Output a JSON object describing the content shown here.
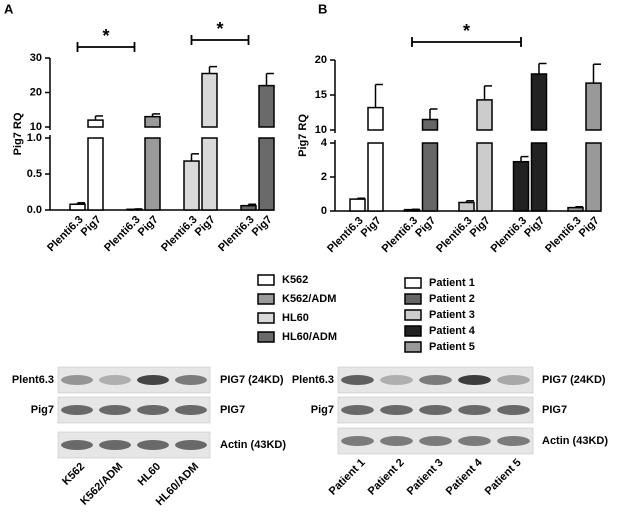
{
  "chart_data": [
    {
      "type": "bar",
      "panel": "A",
      "y_label": "Pig7 RQ",
      "categories": [
        "Plenti6.3",
        "Pig7"
      ],
      "series": [
        {
          "name": "K562",
          "color": "#ffffff",
          "values": [
            0.08,
            12
          ],
          "errors": [
            0.02,
            1.2
          ]
        },
        {
          "name": "K562/ADM",
          "color": "#9a9a9a",
          "values": [
            0.01,
            13
          ],
          "errors": [
            0.005,
            0.8
          ]
        },
        {
          "name": "HL60",
          "color": "#d9d9d9",
          "values": [
            0.68,
            25.5
          ],
          "errors": [
            0.1,
            2
          ]
        },
        {
          "name": "HL60/ADM",
          "color": "#6a6a6a",
          "values": [
            0.06,
            22
          ],
          "errors": [
            0.02,
            3.5
          ]
        }
      ],
      "ylim_lower": [
        0,
        1
      ],
      "yticks_lower": [
        {
          "value": 0,
          "label": "0.0"
        },
        {
          "value": 0.5,
          "label": "0.5"
        },
        {
          "value": 1,
          "label": "1.0"
        }
      ],
      "ylim_upper": [
        10,
        30
      ],
      "yticks_upper": [
        10,
        20,
        30
      ],
      "annotations": [
        "*",
        "*"
      ],
      "blot": {
        "row_labels": [
          "Plent6.3",
          "Pig7"
        ],
        "band_labels": [
          "PIG7 (24KD)",
          "PIG7",
          "Actin (43KD)"
        ],
        "lanes": [
          "K562",
          "K562/ADM",
          "HL60",
          "HL60/ADM"
        ]
      }
    },
    {
      "type": "bar",
      "panel": "B",
      "y_label": "Pig7 RQ",
      "categories": [
        "Plenti6.3",
        "Pig7"
      ],
      "series": [
        {
          "name": "Patient 1",
          "color": "#ffffff",
          "values": [
            0.7,
            13.2
          ],
          "errors": [
            0.05,
            3.3
          ]
        },
        {
          "name": "Patient 2",
          "color": "#666666",
          "values": [
            0.08,
            11.5
          ],
          "errors": [
            0.02,
            1.5
          ]
        },
        {
          "name": "Patient 3",
          "color": "#cccccc",
          "values": [
            0.5,
            14.3
          ],
          "errors": [
            0.1,
            2
          ]
        },
        {
          "name": "Patient 4",
          "color": "#222222",
          "values": [
            2.9,
            18
          ],
          "errors": [
            0.3,
            1.5
          ]
        },
        {
          "name": "Patient 5",
          "color": "#999999",
          "values": [
            0.2,
            16.7
          ],
          "errors": [
            0.05,
            2.7
          ]
        }
      ],
      "ylim_lower": [
        0,
        4
      ],
      "yticks_lower": [
        0,
        2,
        4
      ],
      "ylim_upper": [
        10,
        20
      ],
      "yticks_upper": [
        10,
        15,
        20
      ],
      "annotations": [
        "*"
      ],
      "blot": {
        "row_labels": [
          "Plent6.3",
          "Pig7"
        ],
        "band_labels": [
          "PIG7 (24KD)",
          "PIG7",
          "Actin (43KD)"
        ],
        "lanes": [
          "Patient 1",
          "Patient 2",
          "Patient 3",
          "Patient 4",
          "Patient 5"
        ]
      }
    }
  ]
}
